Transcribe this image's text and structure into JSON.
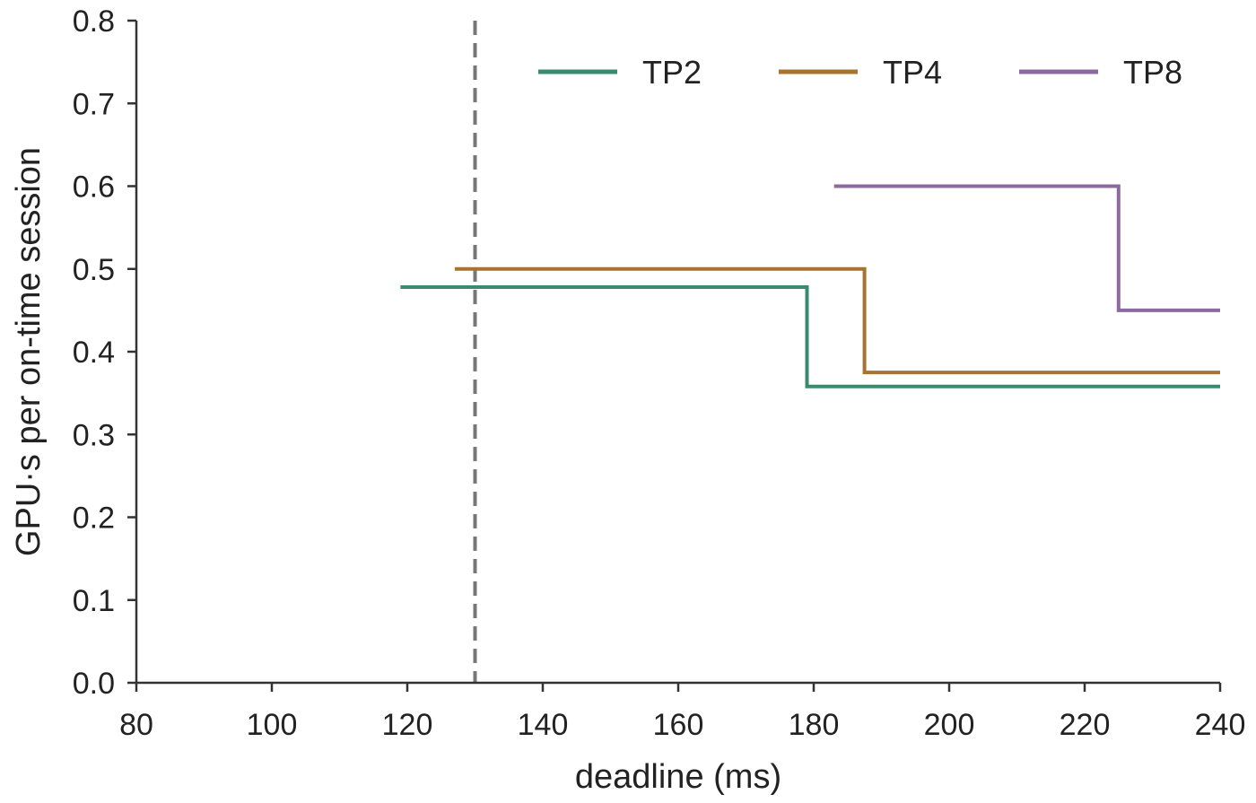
{
  "chart_data": {
    "type": "line",
    "step": true,
    "xlabel": "deadline (ms)",
    "ylabel": "GPU·s per on-time session",
    "xlim": [
      80,
      240
    ],
    "ylim": [
      0.0,
      0.8
    ],
    "xticks": [
      "80",
      "100",
      "120",
      "140",
      "160",
      "180",
      "200",
      "220",
      "240"
    ],
    "yticks": [
      "0.0",
      "0.1",
      "0.2",
      "0.3",
      "0.4",
      "0.5",
      "0.6",
      "0.7",
      "0.8"
    ],
    "grid": false,
    "legend": {
      "placement": "top-right",
      "columns": 3
    },
    "reference_line": {
      "x": 130,
      "style": "dashed",
      "color": "#777777"
    },
    "series": [
      {
        "name": "TP2",
        "color": "#3a8a6e",
        "points": [
          [
            119,
            0.478
          ],
          [
            179,
            0.478
          ],
          [
            179,
            0.358
          ],
          [
            240,
            0.358
          ]
        ]
      },
      {
        "name": "TP4",
        "color": "#a8732e",
        "points": [
          [
            127,
            0.5
          ],
          [
            187.5,
            0.5
          ],
          [
            187.5,
            0.375
          ],
          [
            240,
            0.375
          ]
        ]
      },
      {
        "name": "TP8",
        "color": "#8c69a0",
        "points": [
          [
            183,
            0.6
          ],
          [
            225,
            0.6
          ],
          [
            225,
            0.45
          ],
          [
            240,
            0.45
          ]
        ]
      }
    ]
  }
}
